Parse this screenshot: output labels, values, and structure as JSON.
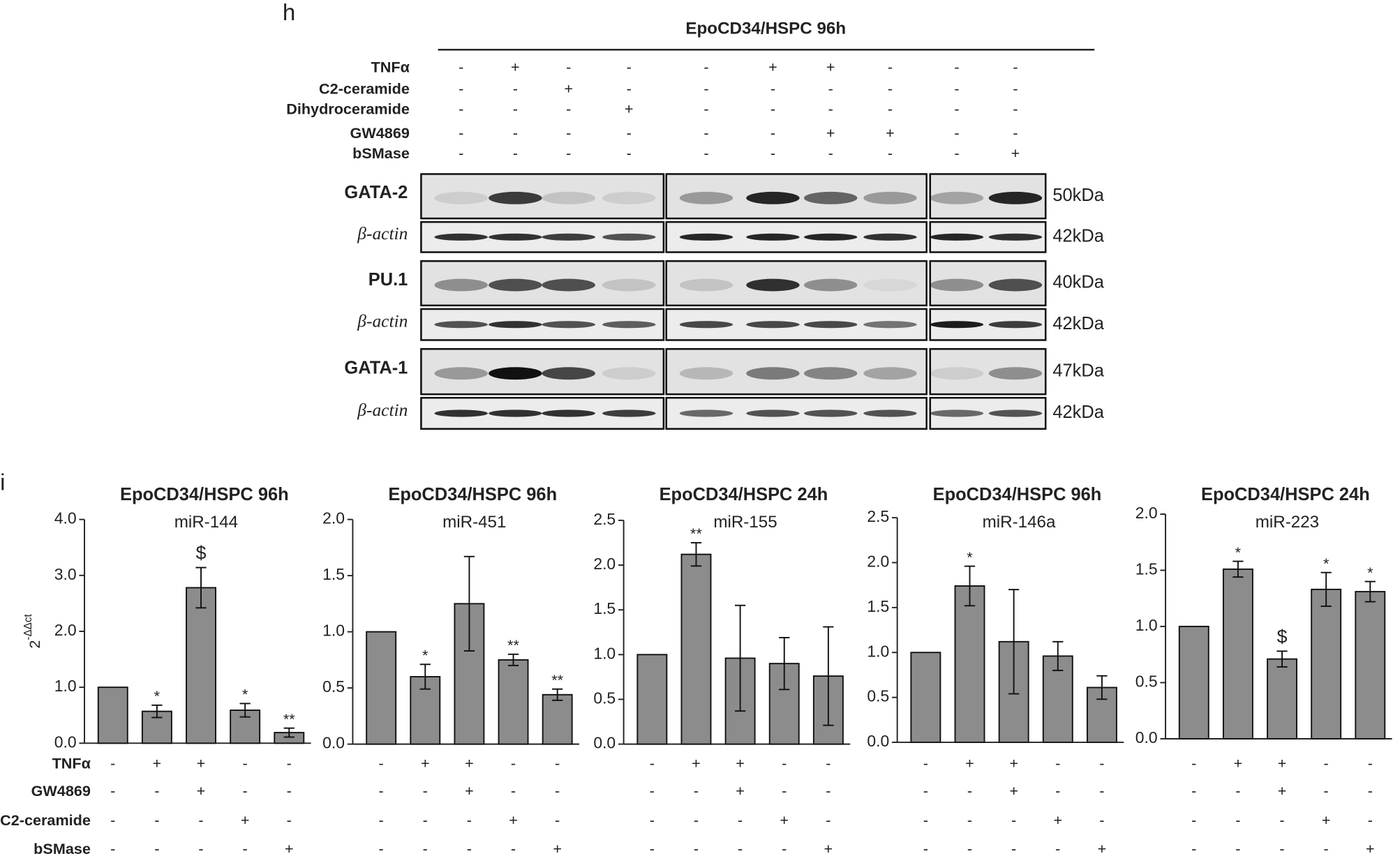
{
  "panel_h": {
    "label": "h",
    "title": "EpoCD34/HSPC 96h",
    "treatments": [
      {
        "name": "TNFα",
        "signs": [
          "-",
          "+",
          "-",
          "-",
          "-",
          "+",
          "+",
          "-",
          "-",
          "-"
        ]
      },
      {
        "name": "C2-ceramide",
        "signs": [
          "-",
          "-",
          "+",
          "-",
          "-",
          "-",
          "-",
          "-",
          "-",
          "-"
        ]
      },
      {
        "name": "Dihydroceramide",
        "signs": [
          "-",
          "-",
          "-",
          "+",
          "-",
          "-",
          "-",
          "-",
          "-",
          "-"
        ]
      },
      {
        "name": "GW4869",
        "signs": [
          "-",
          "-",
          "-",
          "-",
          "-",
          "-",
          "+",
          "+",
          "-",
          "-"
        ]
      },
      {
        "name": "bSMase",
        "signs": [
          "-",
          "-",
          "-",
          "-",
          "-",
          "-",
          "-",
          "-",
          "-",
          "+"
        ]
      }
    ],
    "blots": [
      {
        "protein": "GATA-2",
        "kda": "50kDa",
        "loading": "β-actin",
        "loading_kda": "42kDa"
      },
      {
        "protein": "PU.1",
        "kda": "40kDa",
        "loading": "β-actin",
        "loading_kda": "42kDa"
      },
      {
        "protein": "GATA-1",
        "kda": "47kDa",
        "loading": "β-actin",
        "loading_kda": "42kDa"
      }
    ]
  },
  "panel_i_label": "i",
  "panel_i_treatments": {
    "names": [
      "TNFα",
      "GW4869",
      "C2-ceramide",
      "bSMase"
    ],
    "signs": [
      [
        "-",
        "+",
        "+",
        "-",
        "-"
      ],
      [
        "-",
        "-",
        "+",
        "-",
        "-"
      ],
      [
        "-",
        "-",
        "-",
        "+",
        "-"
      ],
      [
        "-",
        "-",
        "-",
        "-",
        "+"
      ]
    ]
  },
  "chart_data": [
    {
      "type": "bar",
      "title": "EpoCD34/HSPC 96h",
      "subtitle": "miR-144",
      "y_label": {
        "base": "2",
        "exponent": "-ΔΔct"
      },
      "color": "#8c8c8c",
      "ylim": [
        0,
        4
      ],
      "yticks": [
        {
          "value": 0,
          "label": "0.0"
        },
        {
          "value": 1,
          "label": "1.0"
        },
        {
          "value": 2,
          "label": "2.0"
        },
        {
          "value": 3,
          "label": "3.0"
        },
        {
          "value": 4,
          "label": "4.0"
        }
      ],
      "values": [
        1.0,
        0.57,
        2.78,
        0.59,
        0.19
      ],
      "errors": [
        null,
        0.11,
        0.36,
        0.12,
        0.08
      ],
      "annotations": [
        null,
        "*",
        "$",
        "*",
        "**"
      ]
    },
    {
      "type": "bar",
      "title": "EpoCD34/HSPC 96h",
      "subtitle": "miR-451",
      "color": "#8c8c8c",
      "ylim": [
        0,
        2
      ],
      "yticks": [
        {
          "value": 0,
          "label": "0.0"
        },
        0.5,
        {
          "value": 1,
          "label": "1.0"
        },
        1.5,
        {
          "value": 2,
          "label": "2.0"
        }
      ],
      "values": [
        1.0,
        0.6,
        1.25,
        0.75,
        0.44
      ],
      "errors": [
        null,
        0.11,
        0.42,
        0.05,
        0.05
      ],
      "annotations": [
        null,
        "*",
        null,
        "**",
        "**"
      ]
    },
    {
      "type": "bar",
      "title": "EpoCD34/HSPC 24h",
      "subtitle": "miR-155",
      "color": "#8c8c8c",
      "ylim": [
        0,
        2.5
      ],
      "yticks": [
        {
          "value": 0,
          "label": "0.0"
        },
        0.5,
        {
          "value": 1,
          "label": "1.0"
        },
        1.5,
        {
          "value": 2,
          "label": "2.0"
        },
        2.5
      ],
      "values": [
        1.0,
        2.12,
        0.96,
        0.9,
        0.76
      ],
      "errors": [
        null,
        0.13,
        0.59,
        0.29,
        0.55
      ],
      "annotations": [
        null,
        "**",
        null,
        null,
        null
      ]
    },
    {
      "type": "bar",
      "title": "EpoCD34/HSPC 96h",
      "subtitle": "miR-146a",
      "color": "#8c8c8c",
      "ylim": [
        0,
        2.5
      ],
      "yticks": [
        {
          "value": 0,
          "label": "0.0"
        },
        0.5,
        {
          "value": 1,
          "label": "1.0"
        },
        1.5,
        {
          "value": 2,
          "label": "2.0"
        },
        2.5
      ],
      "values": [
        1.0,
        1.74,
        1.12,
        0.96,
        0.61
      ],
      "errors": [
        null,
        0.22,
        0.58,
        0.16,
        0.13
      ],
      "annotations": [
        null,
        "*",
        null,
        null,
        null
      ]
    },
    {
      "type": "bar",
      "title": "EpoCD34/HSPC 24h",
      "subtitle": "miR-223",
      "color": "#8c8c8c",
      "ylim": [
        0,
        2
      ],
      "yticks": [
        {
          "value": 0,
          "label": "0.0"
        },
        0.5,
        {
          "value": 1,
          "label": "1.0"
        },
        1.5,
        {
          "value": 2,
          "label": "2.0"
        }
      ],
      "values": [
        1.0,
        1.51,
        0.71,
        1.33,
        1.31
      ],
      "errors": [
        null,
        0.07,
        0.07,
        0.15,
        0.09
      ],
      "annotations": [
        null,
        "*",
        "$",
        "*",
        "*"
      ]
    }
  ]
}
